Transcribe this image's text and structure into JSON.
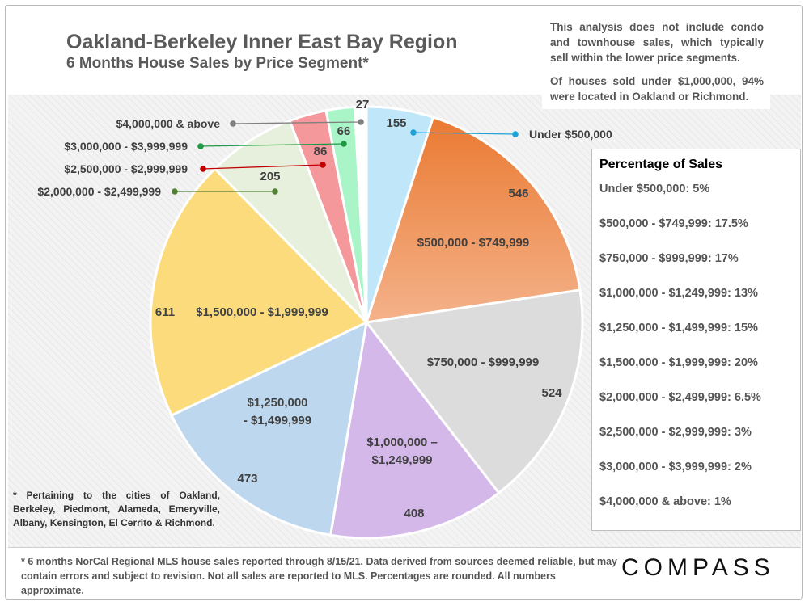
{
  "title": "Oakland-Berkeley Inner East Bay Region",
  "subtitle": "6 Months House Sales by Price Segment*",
  "note_paragraphs": [
    "This analysis does not include condo and townhouse sales, which typically sell within the lower price segments.",
    "Of houses sold under $1,000,000, 94% were located in Oakland or Richmond."
  ],
  "percentage_box": {
    "title": "Percentage of Sales",
    "items": [
      "Under $500,000: 5%",
      "$500,000 - $749,999:  17.5%",
      "$750,000 - $999,999:  17%",
      "$1,000,000 - $1,249,999: 13%",
      "$1,250,000 - $1,499,999:  15%",
      "$1,500,000 - $1,999,999: 20%",
      "$2,000,000 - $2,499,999: 6.5%",
      "$2,500,000 - $2,999,999:  3%",
      "$3,000,000 - $3,999,999: 2%",
      "$4,000,000 & above:  1%"
    ]
  },
  "footnote_cities": "* Pertaining to the cities of Oakland, Berkeley, Piedmont, Alameda, Emeryville, Albany, Kensington, El Cerrito & Richmond.",
  "footer_text": "* 6 months NorCal Regional MLS house sales reported through 8/15/21. Data derived from sources deemed reliable, but may contain errors and subject to revision. Not all sales are reported to MLS. Percentages are rounded. All numbers approximate.",
  "brand": "COMPASS",
  "chart_data": {
    "type": "pie",
    "title": "6 Months House Sales by Price Segment*",
    "start": "12 o'clock, clockwise",
    "slices": [
      {
        "label": "Under $500,000",
        "value": 155,
        "color": "#bfe7f9",
        "center_label": "",
        "callout": "Under $500,000",
        "marker_color": "#1fa2db"
      },
      {
        "label": "$500,000 - $749,999",
        "value": 546,
        "color": "#ef8a43",
        "center_label": "$500,000 - $749,999",
        "callout": "",
        "marker_color": ""
      },
      {
        "label": "$750,000 - $999,999",
        "value": 524,
        "color": "#dcdcdc",
        "center_label": "$750,000 - $999,999",
        "callout": "",
        "marker_color": ""
      },
      {
        "label": "$1,000,000 – $1,249,999",
        "value": 408,
        "color": "#d4b8ea",
        "center_label": "$1,000,000 –|$1,249,999",
        "callout": "",
        "marker_color": ""
      },
      {
        "label": "$1,250,000 - $1,499,999",
        "value": 473,
        "color": "#bdd7ee",
        "center_label": "$1,250,000|- $1,499,999",
        "callout": "",
        "marker_color": ""
      },
      {
        "label": "$1,500,000 - $1,999,999",
        "value": 611,
        "color": "#fbdb7c",
        "center_label": "$1,500,000 - $1,999,999",
        "callout": "",
        "marker_color": ""
      },
      {
        "label": "$2,000,000 - $2,499,999",
        "value": 205,
        "color": "#e6f0dc",
        "center_label": "",
        "callout": "$2,000,000 - $2,499,999",
        "marker_color": "#548235"
      },
      {
        "label": "$2,500,000 - $2,999,999",
        "value": 86,
        "color": "#f4989c",
        "center_label": "",
        "callout": "$2,500,000 - $2,999,999",
        "marker_color": "#c00000"
      },
      {
        "label": "$3,000,000 - $3,999,999",
        "value": 66,
        "color": "#a9f5c8",
        "center_label": "",
        "callout": "$3,000,000 - $3,999,999",
        "marker_color": "#1e9a46"
      },
      {
        "label": "$4,000,000 & above",
        "value": 27,
        "color": "#ffffff",
        "center_label": "",
        "callout": "$4,000,000 & above",
        "marker_color": "#808080"
      }
    ]
  }
}
